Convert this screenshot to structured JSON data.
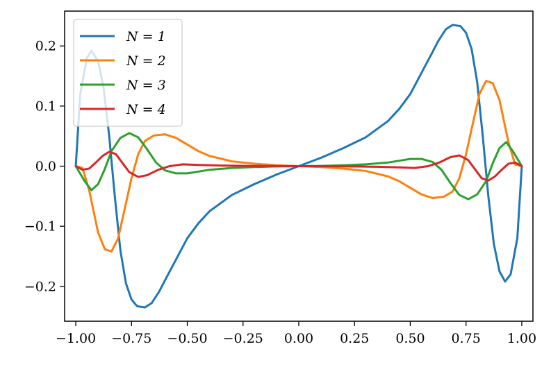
{
  "chart_data": {
    "type": "line",
    "title": "",
    "xlabel": "",
    "ylabel": "",
    "xlim": [
      -1.05,
      1.05
    ],
    "ylim": [
      -0.258,
      0.258
    ],
    "grid": false,
    "legend_position": "top-left",
    "x_ticks": [
      {
        "value": -1.0,
        "label": "−1.00"
      },
      {
        "value": -0.75,
        "label": "−0.75"
      },
      {
        "value": -0.5,
        "label": "−0.50"
      },
      {
        "value": -0.25,
        "label": "−0.25"
      },
      {
        "value": 0.0,
        "label": "0.00"
      },
      {
        "value": 0.25,
        "label": "0.25"
      },
      {
        "value": 0.5,
        "label": "0.50"
      },
      {
        "value": 0.75,
        "label": "0.75"
      },
      {
        "value": 1.0,
        "label": "1.00"
      }
    ],
    "y_ticks": [
      {
        "value": 0.2,
        "label": "0.2"
      },
      {
        "value": 0.1,
        "label": "0.1"
      },
      {
        "value": 0.0,
        "label": "0.0"
      },
      {
        "value": -0.1,
        "label": "−0.1"
      },
      {
        "value": -0.2,
        "label": "−0.2"
      }
    ],
    "series": [
      {
        "name": "N = 1",
        "color": "#1f77b4",
        "points": [
          [
            -1.0,
            0.0
          ],
          [
            -0.98,
            0.12
          ],
          [
            -0.95,
            0.18
          ],
          [
            -0.93,
            0.192
          ],
          [
            -0.9,
            0.175
          ],
          [
            -0.875,
            0.13
          ],
          [
            -0.85,
            0.05
          ],
          [
            -0.825,
            -0.05
          ],
          [
            -0.8,
            -0.14
          ],
          [
            -0.775,
            -0.195
          ],
          [
            -0.75,
            -0.222
          ],
          [
            -0.725,
            -0.233
          ],
          [
            -0.69,
            -0.235
          ],
          [
            -0.66,
            -0.228
          ],
          [
            -0.625,
            -0.208
          ],
          [
            -0.6,
            -0.19
          ],
          [
            -0.55,
            -0.155
          ],
          [
            -0.5,
            -0.12
          ],
          [
            -0.45,
            -0.095
          ],
          [
            -0.4,
            -0.075
          ],
          [
            -0.3,
            -0.048
          ],
          [
            -0.2,
            -0.03
          ],
          [
            -0.1,
            -0.014
          ],
          [
            0.0,
            0.0
          ],
          [
            0.1,
            0.014
          ],
          [
            0.2,
            0.03
          ],
          [
            0.3,
            0.048
          ],
          [
            0.4,
            0.075
          ],
          [
            0.45,
            0.095
          ],
          [
            0.5,
            0.12
          ],
          [
            0.55,
            0.155
          ],
          [
            0.6,
            0.19
          ],
          [
            0.625,
            0.208
          ],
          [
            0.66,
            0.228
          ],
          [
            0.69,
            0.235
          ],
          [
            0.725,
            0.233
          ],
          [
            0.75,
            0.222
          ],
          [
            0.775,
            0.195
          ],
          [
            0.8,
            0.14
          ],
          [
            0.825,
            0.05
          ],
          [
            0.85,
            -0.05
          ],
          [
            0.875,
            -0.13
          ],
          [
            0.9,
            -0.175
          ],
          [
            0.925,
            -0.192
          ],
          [
            0.95,
            -0.18
          ],
          [
            0.98,
            -0.12
          ],
          [
            1.0,
            0.0
          ]
        ]
      },
      {
        "name": "N = 2",
        "color": "#ff7f0e",
        "points": [
          [
            -1.0,
            0.0
          ],
          [
            -0.97,
            -0.003
          ],
          [
            -0.94,
            -0.04
          ],
          [
            -0.9,
            -0.11
          ],
          [
            -0.87,
            -0.138
          ],
          [
            -0.84,
            -0.142
          ],
          [
            -0.81,
            -0.12
          ],
          [
            -0.78,
            -0.07
          ],
          [
            -0.75,
            -0.02
          ],
          [
            -0.72,
            0.02
          ],
          [
            -0.69,
            0.042
          ],
          [
            -0.65,
            0.051
          ],
          [
            -0.6,
            0.053
          ],
          [
            -0.55,
            0.047
          ],
          [
            -0.5,
            0.036
          ],
          [
            -0.45,
            0.025
          ],
          [
            -0.4,
            0.017
          ],
          [
            -0.3,
            0.008
          ],
          [
            -0.2,
            0.004
          ],
          [
            -0.1,
            0.0015
          ],
          [
            0.0,
            0.0
          ],
          [
            0.1,
            -0.0015
          ],
          [
            0.2,
            -0.004
          ],
          [
            0.3,
            -0.008
          ],
          [
            0.4,
            -0.017
          ],
          [
            0.45,
            -0.025
          ],
          [
            0.5,
            -0.036
          ],
          [
            0.55,
            -0.047
          ],
          [
            0.6,
            -0.053
          ],
          [
            0.65,
            -0.051
          ],
          [
            0.69,
            -0.042
          ],
          [
            0.72,
            -0.02
          ],
          [
            0.75,
            0.02
          ],
          [
            0.78,
            0.07
          ],
          [
            0.81,
            0.12
          ],
          [
            0.84,
            0.142
          ],
          [
            0.87,
            0.138
          ],
          [
            0.9,
            0.11
          ],
          [
            0.94,
            0.04
          ],
          [
            0.97,
            0.003
          ],
          [
            1.0,
            0.0
          ]
        ]
      },
      {
        "name": "N = 3",
        "color": "#2ca02c",
        "points": [
          [
            -1.0,
            0.0
          ],
          [
            -0.96,
            -0.025
          ],
          [
            -0.93,
            -0.04
          ],
          [
            -0.9,
            -0.03
          ],
          [
            -0.87,
            -0.005
          ],
          [
            -0.84,
            0.025
          ],
          [
            -0.8,
            0.047
          ],
          [
            -0.76,
            0.055
          ],
          [
            -0.72,
            0.048
          ],
          [
            -0.68,
            0.028
          ],
          [
            -0.64,
            0.006
          ],
          [
            -0.6,
            -0.007
          ],
          [
            -0.55,
            -0.012
          ],
          [
            -0.5,
            -0.012
          ],
          [
            -0.45,
            -0.009
          ],
          [
            -0.4,
            -0.006
          ],
          [
            -0.3,
            -0.003
          ],
          [
            -0.2,
            -0.0015
          ],
          [
            -0.1,
            -0.0005
          ],
          [
            0.0,
            0.0
          ],
          [
            0.1,
            0.0005
          ],
          [
            0.2,
            0.0015
          ],
          [
            0.3,
            0.003
          ],
          [
            0.4,
            0.006
          ],
          [
            0.45,
            0.009
          ],
          [
            0.5,
            0.012
          ],
          [
            0.55,
            0.012
          ],
          [
            0.6,
            0.007
          ],
          [
            0.64,
            -0.006
          ],
          [
            0.68,
            -0.028
          ],
          [
            0.72,
            -0.048
          ],
          [
            0.76,
            -0.055
          ],
          [
            0.8,
            -0.047
          ],
          [
            0.84,
            -0.025
          ],
          [
            0.87,
            0.005
          ],
          [
            0.9,
            0.03
          ],
          [
            0.93,
            0.04
          ],
          [
            0.96,
            0.025
          ],
          [
            1.0,
            0.0
          ]
        ]
      },
      {
        "name": "N = 4",
        "color": "#d62728",
        "points": [
          [
            -1.0,
            0.0
          ],
          [
            -0.97,
            -0.006
          ],
          [
            -0.94,
            -0.004
          ],
          [
            -0.91,
            0.006
          ],
          [
            -0.88,
            0.017
          ],
          [
            -0.85,
            0.024
          ],
          [
            -0.82,
            0.02
          ],
          [
            -0.79,
            0.005
          ],
          [
            -0.76,
            -0.01
          ],
          [
            -0.72,
            -0.018
          ],
          [
            -0.68,
            -0.015
          ],
          [
            -0.63,
            -0.006
          ],
          [
            -0.58,
            0.0
          ],
          [
            -0.52,
            0.003
          ],
          [
            -0.45,
            0.002
          ],
          [
            -0.35,
            0.001
          ],
          [
            -0.2,
            0.0003
          ],
          [
            0.0,
            0.0
          ],
          [
            0.2,
            -0.0003
          ],
          [
            0.35,
            -0.001
          ],
          [
            0.45,
            -0.002
          ],
          [
            0.52,
            -0.003
          ],
          [
            0.58,
            0.0
          ],
          [
            0.63,
            0.006
          ],
          [
            0.68,
            0.015
          ],
          [
            0.72,
            0.018
          ],
          [
            0.76,
            0.01
          ],
          [
            0.79,
            -0.005
          ],
          [
            0.82,
            -0.02
          ],
          [
            0.85,
            -0.024
          ],
          [
            0.88,
            -0.017
          ],
          [
            0.91,
            -0.006
          ],
          [
            0.94,
            0.004
          ],
          [
            0.97,
            0.006
          ],
          [
            1.0,
            0.0
          ]
        ]
      }
    ]
  }
}
